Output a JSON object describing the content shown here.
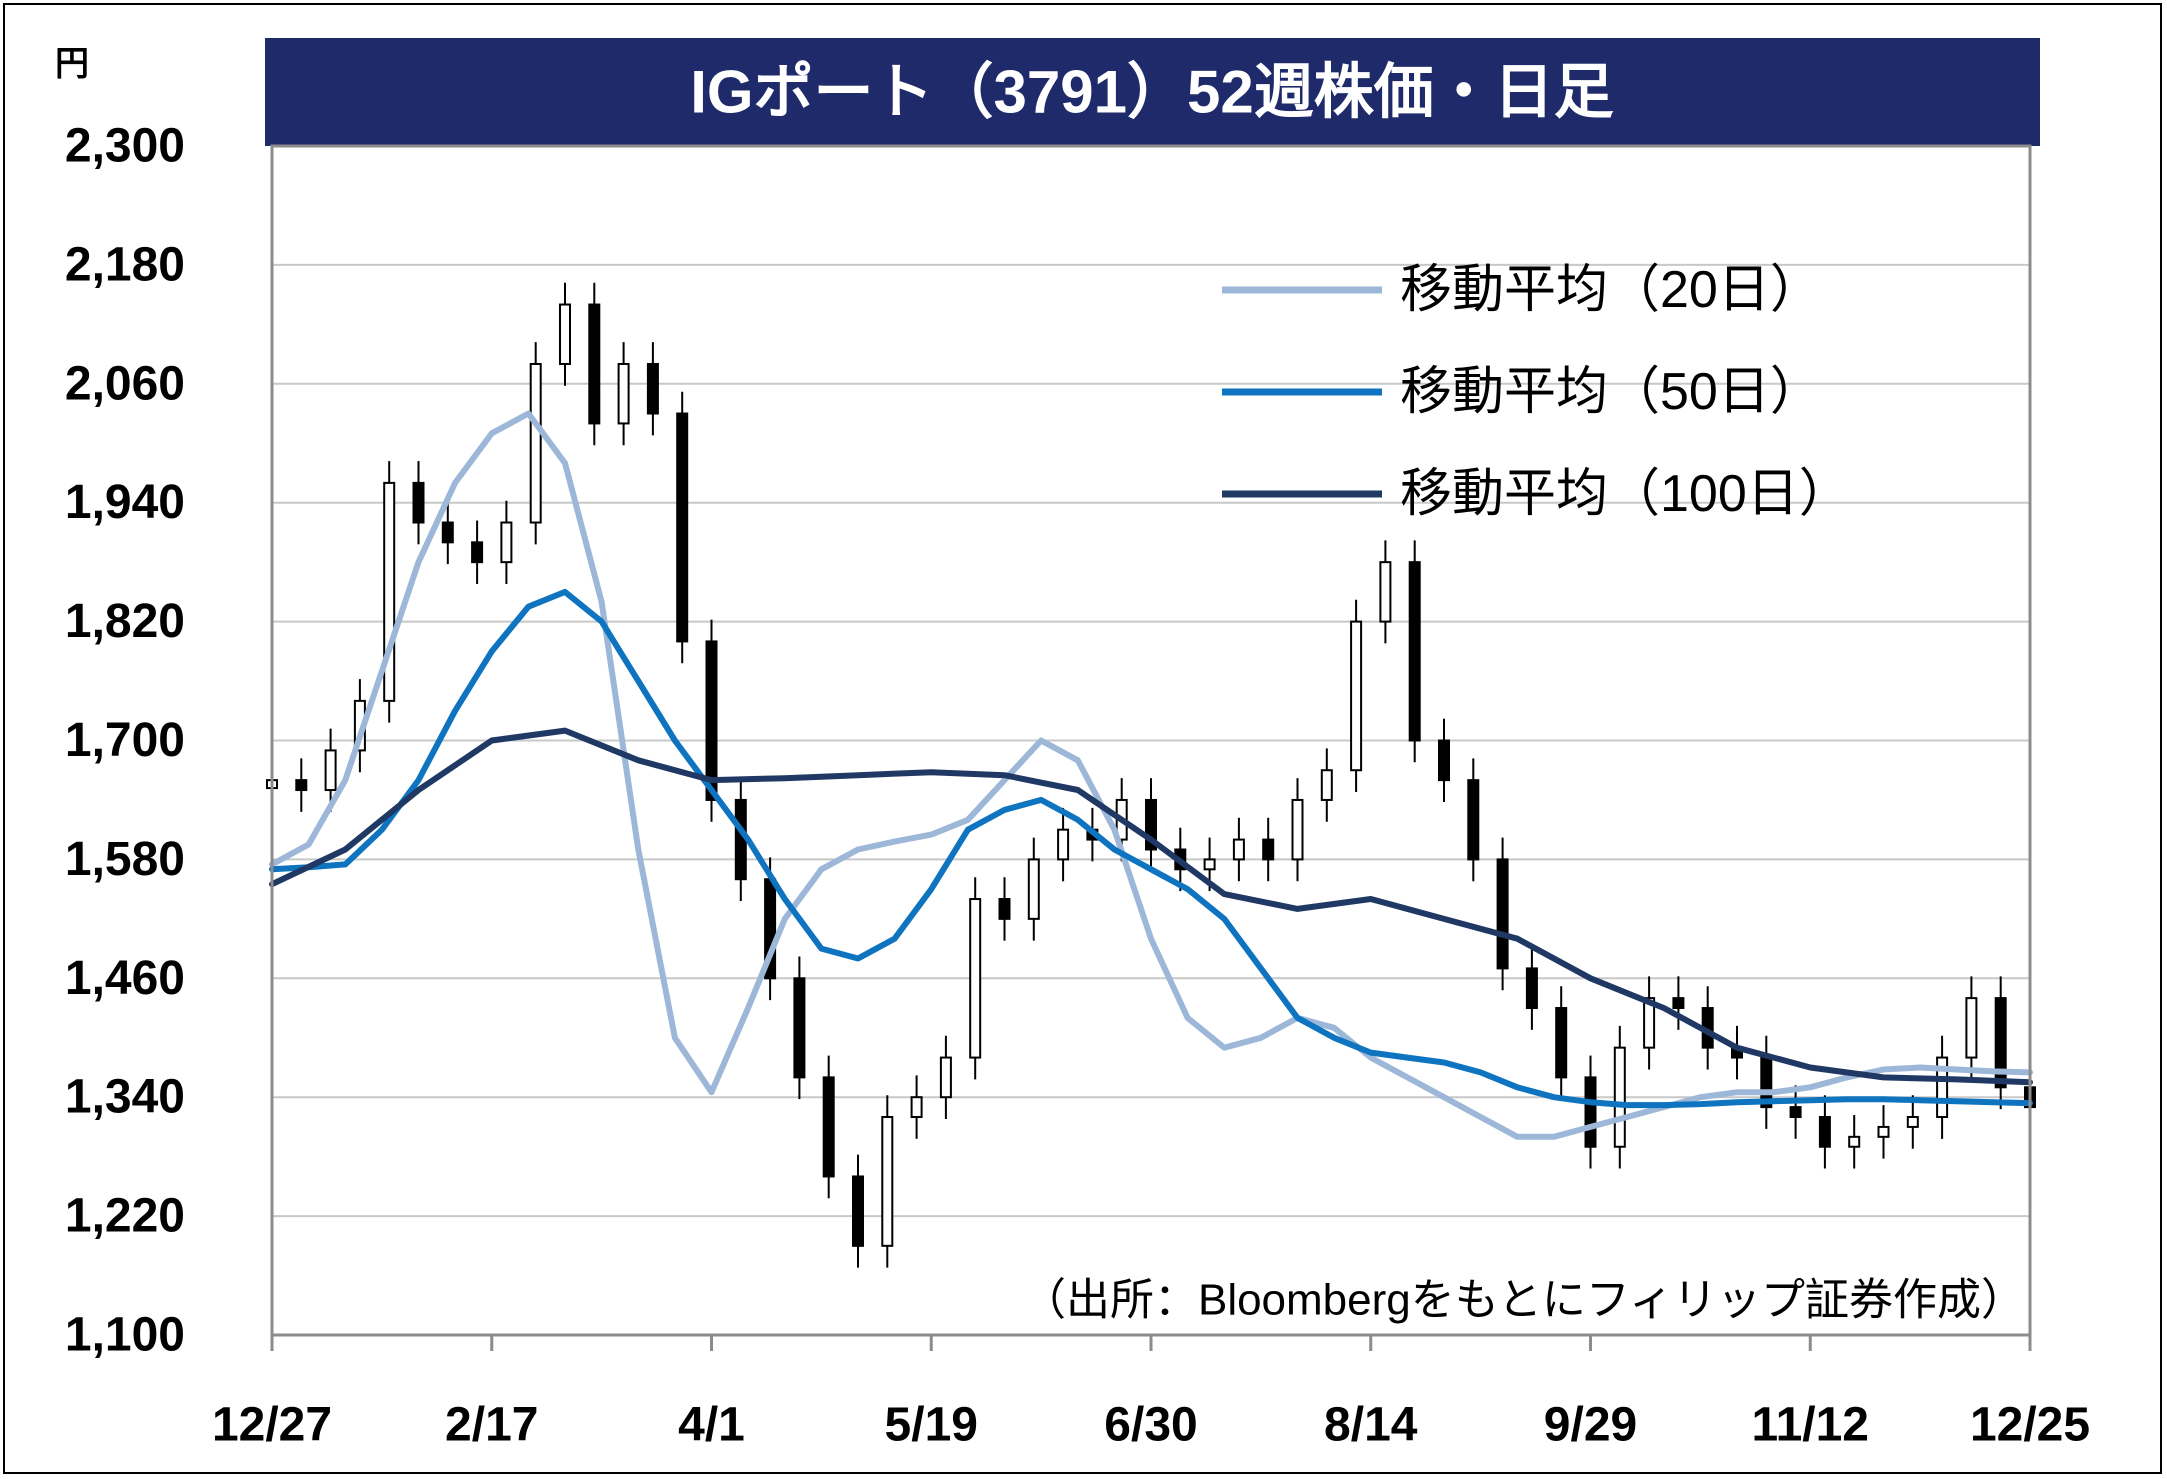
{
  "title": "IGポート（3791）52週株価・日足",
  "unit": "円",
  "source": "（出所：Bloombergをもとにフィリップ証券作成）",
  "colors": {
    "title_bg": "#1F2A6B",
    "candle": "#000000",
    "ma20": "#9DB7D9",
    "ma50": "#0E74C0",
    "ma100": "#1F3864",
    "grid": "#C8C8C8",
    "axis": "#8C8C8C"
  },
  "chart_data": {
    "type": "candlestick",
    "ylabel": "円",
    "ylim": [
      1100,
      2300
    ],
    "yticks": [
      "2,300",
      "2,180",
      "2,060",
      "1,940",
      "1,820",
      "1,700",
      "1,580",
      "1,460",
      "1,340",
      "1,220",
      "1,100"
    ],
    "ytick_values": [
      2300,
      2180,
      2060,
      1940,
      1820,
      1700,
      1580,
      1460,
      1340,
      1220,
      1100
    ],
    "xticks": [
      "12/27",
      "2/17",
      "4/1",
      "5/19",
      "6/30",
      "8/14",
      "9/29",
      "11/12",
      "12/25"
    ],
    "xtick_days": [
      0,
      30,
      60,
      90,
      120,
      150,
      180,
      210,
      240
    ],
    "n_days": 241,
    "grid": true,
    "legend_position": "top-right",
    "candles_days": [
      0,
      4,
      8,
      12,
      16,
      20,
      24,
      28,
      32,
      36,
      40,
      44,
      48,
      52,
      56,
      60,
      64,
      68,
      72,
      76,
      80,
      84,
      88,
      92,
      96,
      100,
      104,
      108,
      112,
      116,
      120,
      124,
      128,
      132,
      136,
      140,
      144,
      148,
      152,
      156,
      160,
      164,
      168,
      172,
      176,
      180,
      184,
      188,
      192,
      196,
      200,
      204,
      208,
      212,
      216,
      220,
      224,
      228,
      232,
      236,
      240
    ],
    "candles_close": [
      1660,
      1650,
      1690,
      1740,
      1960,
      1920,
      1900,
      1880,
      1920,
      2080,
      2140,
      2020,
      2080,
      2030,
      1800,
      1640,
      1560,
      1460,
      1360,
      1260,
      1190,
      1320,
      1340,
      1380,
      1540,
      1520,
      1580,
      1610,
      1600,
      1640,
      1590,
      1570,
      1580,
      1600,
      1580,
      1640,
      1670,
      1820,
      1880,
      1700,
      1660,
      1580,
      1470,
      1430,
      1360,
      1290,
      1390,
      1440,
      1430,
      1390,
      1380,
      1330,
      1320,
      1290,
      1300,
      1310,
      1320,
      1380,
      1440,
      1350,
      1330
    ],
    "series": [
      {
        "name": "移動平均（20日）",
        "x": [
          0,
          5,
          10,
          15,
          20,
          25,
          30,
          35,
          40,
          45,
          50,
          55,
          60,
          65,
          70,
          75,
          80,
          85,
          90,
          95,
          100,
          105,
          110,
          115,
          120,
          125,
          130,
          135,
          140,
          145,
          150,
          155,
          160,
          165,
          170,
          175,
          180,
          185,
          190,
          195,
          200,
          205,
          210,
          215,
          220,
          225,
          230,
          235,
          240
        ],
        "values": [
          1575,
          1595,
          1660,
          1770,
          1880,
          1960,
          2010,
          2030,
          1980,
          1840,
          1590,
          1400,
          1345,
          1430,
          1520,
          1570,
          1590,
          1598,
          1605,
          1620,
          1660,
          1700,
          1680,
          1610,
          1500,
          1420,
          1390,
          1400,
          1420,
          1410,
          1380,
          1360,
          1340,
          1320,
          1300,
          1300,
          1310,
          1320,
          1330,
          1340,
          1345,
          1345,
          1350,
          1360,
          1368,
          1370,
          1368,
          1366,
          1365
        ]
      },
      {
        "name": "移動平均（50日）",
        "x": [
          0,
          5,
          10,
          15,
          20,
          25,
          30,
          35,
          40,
          45,
          50,
          55,
          60,
          65,
          70,
          75,
          80,
          85,
          90,
          95,
          100,
          105,
          110,
          115,
          120,
          125,
          130,
          135,
          140,
          145,
          150,
          155,
          160,
          165,
          170,
          175,
          180,
          185,
          190,
          195,
          200,
          205,
          210,
          215,
          220,
          225,
          230,
          235,
          240
        ],
        "values": [
          1570,
          1572,
          1575,
          1610,
          1660,
          1730,
          1790,
          1835,
          1850,
          1820,
          1760,
          1700,
          1650,
          1600,
          1540,
          1490,
          1480,
          1500,
          1550,
          1610,
          1630,
          1640,
          1620,
          1590,
          1570,
          1550,
          1520,
          1470,
          1420,
          1400,
          1385,
          1380,
          1375,
          1365,
          1350,
          1340,
          1335,
          1332,
          1332,
          1333,
          1335,
          1336,
          1337,
          1338,
          1338,
          1337,
          1336,
          1335,
          1334
        ]
      },
      {
        "name": "移動平均（100日）",
        "x": [
          0,
          10,
          20,
          30,
          40,
          50,
          60,
          70,
          80,
          90,
          100,
          110,
          120,
          130,
          140,
          150,
          160,
          170,
          180,
          190,
          200,
          210,
          220,
          230,
          240
        ],
        "values": [
          1555,
          1590,
          1650,
          1700,
          1710,
          1680,
          1660,
          1662,
          1665,
          1668,
          1665,
          1650,
          1600,
          1545,
          1530,
          1540,
          1520,
          1500,
          1460,
          1430,
          1390,
          1370,
          1360,
          1358,
          1355
        ]
      }
    ]
  }
}
